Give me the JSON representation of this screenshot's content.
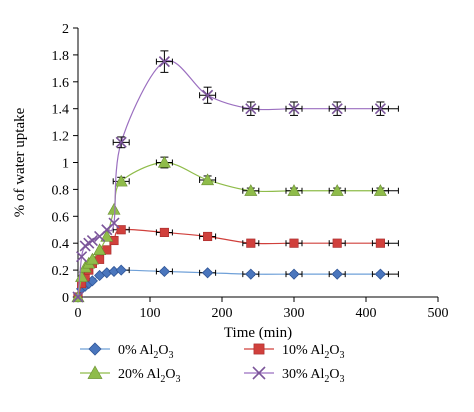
{
  "chart_data": {
    "type": "line",
    "title": "",
    "xlabel": "Time (min)",
    "ylabel": "% of water uptake",
    "xlim": [
      0,
      500
    ],
    "ylim": [
      0,
      2
    ],
    "x_ticks": [
      "0",
      "100",
      "200",
      "300",
      "400",
      "500"
    ],
    "y_ticks": [
      "0",
      "0.2",
      "0.4",
      "0.6",
      "0.8",
      "1",
      "1.2",
      "1.4",
      "1.6",
      "1.8",
      "2"
    ],
    "grid": false,
    "legend_position": "bottom",
    "series": [
      {
        "name": "0% Al2O3",
        "legend": {
          "pre": "0% Al",
          "sub1": "2",
          "mid": "O",
          "sub2": "3"
        },
        "marker": "diamond",
        "color": "#4a76bd",
        "line_color": "#6fa0d8",
        "x": [
          0,
          5,
          10,
          15,
          20,
          30,
          40,
          50,
          60,
          120,
          180,
          240,
          300,
          360,
          420
        ],
        "y": [
          0,
          0.06,
          0.08,
          0.1,
          0.12,
          0.16,
          0.18,
          0.19,
          0.2,
          0.19,
          0.18,
          0.17,
          0.17,
          0.17,
          0.17
        ],
        "err": [
          0,
          0,
          0,
          0,
          0,
          0,
          0,
          0,
          0,
          0.01,
          0.01,
          0.01,
          0.01,
          0.01,
          0.01
        ]
      },
      {
        "name": "10% Al2O3",
        "legend": {
          "pre": "10% Al",
          "sub1": "2",
          "mid": "O",
          "sub2": "3"
        },
        "marker": "square",
        "color": "#d0403c",
        "line_color": "#d0403c",
        "x": [
          0,
          5,
          10,
          15,
          20,
          30,
          40,
          50,
          60,
          120,
          180,
          240,
          300,
          360,
          420
        ],
        "y": [
          0,
          0.1,
          0.15,
          0.2,
          0.25,
          0.28,
          0.35,
          0.42,
          0.5,
          0.48,
          0.45,
          0.4,
          0.4,
          0.4,
          0.4
        ],
        "err": [
          0,
          0,
          0,
          0,
          0,
          0,
          0,
          0,
          0,
          0.01,
          0.02,
          0.02,
          0.02,
          0.02,
          0.02
        ]
      },
      {
        "name": "20% Al2O3",
        "legend": {
          "pre": "20% Al",
          "sub1": "2",
          "mid": "O",
          "sub2": "3"
        },
        "marker": "triangle",
        "color": "#8fbc4a",
        "line_color": "#8fbc4a",
        "x": [
          0,
          5,
          10,
          15,
          20,
          30,
          40,
          50,
          60,
          120,
          180,
          240,
          300,
          360,
          420
        ],
        "y": [
          0,
          0.15,
          0.22,
          0.25,
          0.28,
          0.35,
          0.45,
          0.65,
          0.86,
          1.0,
          0.87,
          0.79,
          0.79,
          0.79,
          0.79
        ],
        "err": [
          0,
          0,
          0,
          0,
          0,
          0,
          0,
          0,
          0.03,
          0.04,
          0.03,
          0.02,
          0.02,
          0.02,
          0.02
        ]
      },
      {
        "name": "30% Al2O3",
        "legend": {
          "pre": "30% Al",
          "sub1": "2",
          "mid": "O",
          "sub2": "3"
        },
        "marker": "x",
        "color": "#7b559a",
        "line_color": "#9b6fc0",
        "x": [
          0,
          5,
          10,
          15,
          20,
          30,
          40,
          50,
          60,
          120,
          180,
          240,
          300,
          360,
          420
        ],
        "y": [
          0,
          0.3,
          0.38,
          0.4,
          0.42,
          0.45,
          0.5,
          0.55,
          1.15,
          1.75,
          1.5,
          1.4,
          1.4,
          1.4,
          1.4
        ],
        "err": [
          0,
          0,
          0,
          0,
          0,
          0,
          0,
          0,
          0.04,
          0.08,
          0.06,
          0.05,
          0.05,
          0.05,
          0.05
        ]
      }
    ]
  }
}
